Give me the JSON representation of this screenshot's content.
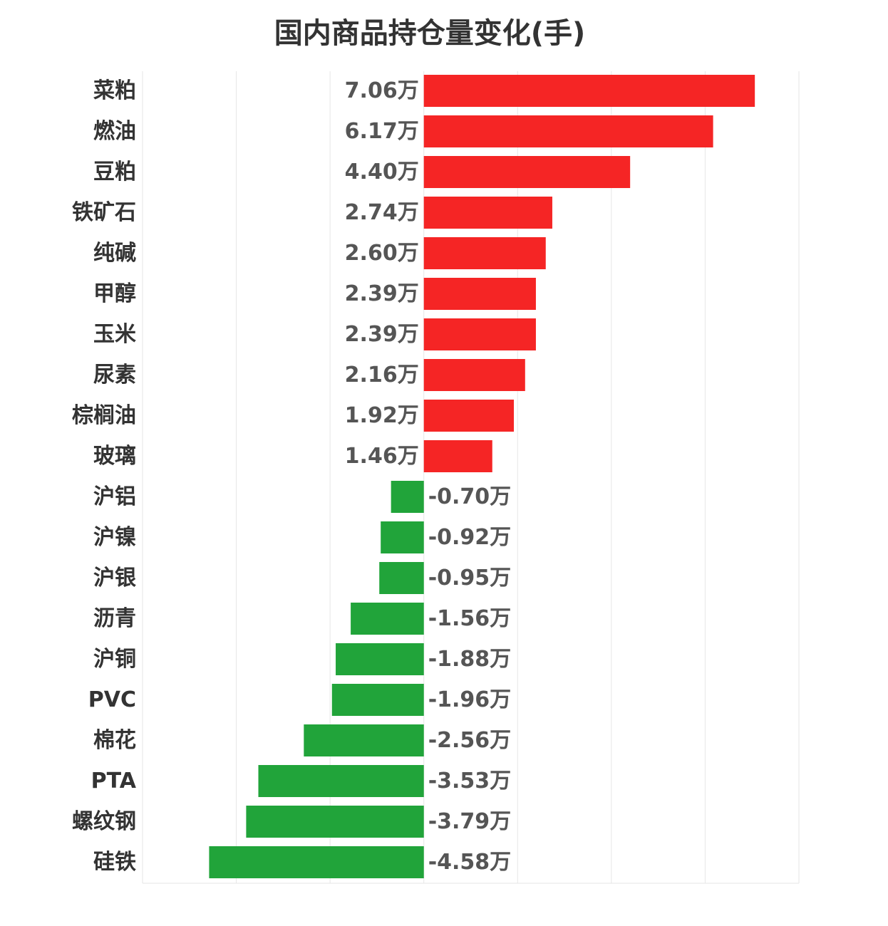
{
  "chart_data": {
    "type": "bar",
    "orientation": "horizontal",
    "title": "国内商品持仓量变化(手)",
    "categories": [
      "菜粕",
      "燃油",
      "豆粕",
      "铁矿石",
      "纯碱",
      "甲醇",
      "玉米",
      "尿素",
      "棕榈油",
      "玻璃",
      "沪铝",
      "沪镍",
      "沪银",
      "沥青",
      "沪铜",
      "PVC",
      "棉花",
      "PTA",
      "螺纹钢",
      "硅铁"
    ],
    "values": [
      7.06,
      6.17,
      4.4,
      2.74,
      2.6,
      2.39,
      2.39,
      2.16,
      1.92,
      1.46,
      -0.7,
      -0.92,
      -0.95,
      -1.56,
      -1.88,
      -1.96,
      -2.56,
      -3.53,
      -3.79,
      -4.58
    ],
    "value_labels": [
      "7.06万",
      "6.17万",
      "4.40万",
      "2.74万",
      "2.60万",
      "2.39万",
      "2.39万",
      "2.16万",
      "1.92万",
      "1.46万",
      "-0.70万",
      "-0.92万",
      "-0.95万",
      "-1.56万",
      "-1.88万",
      "-1.96万",
      "-2.56万",
      "-3.53万",
      "-3.79万",
      "-4.58万"
    ],
    "unit": "万",
    "xlim": [
      -6,
      8
    ],
    "grid": true,
    "colors": {
      "positive": "#f52525",
      "negative": "#21a43a"
    }
  }
}
